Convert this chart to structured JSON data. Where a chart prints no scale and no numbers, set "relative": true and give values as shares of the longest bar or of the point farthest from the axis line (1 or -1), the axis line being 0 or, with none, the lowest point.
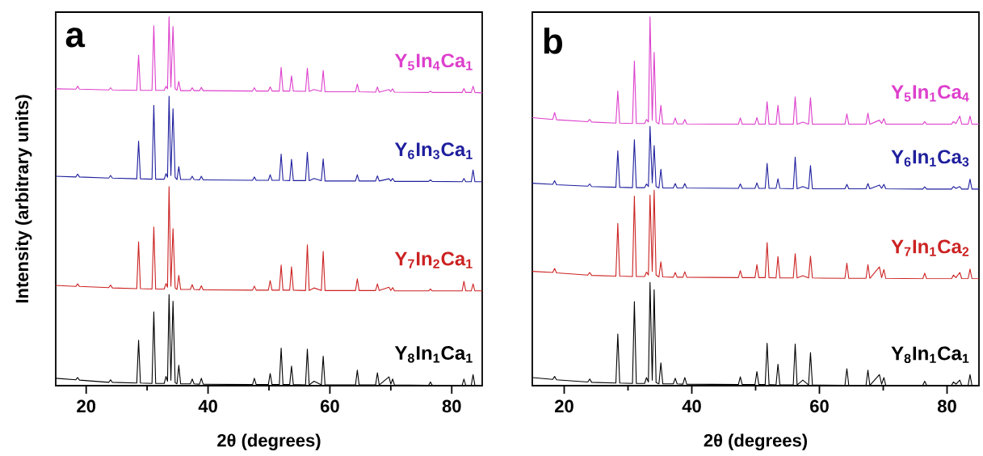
{
  "chart_data": [
    {
      "type": "line",
      "title": "a",
      "xlabel": "2θ (degrees)",
      "ylabel": "Intensity (arbitrary units)",
      "relative": true,
      "xlim": [
        15,
        85
      ],
      "xticks": [
        20,
        40,
        60,
        80
      ],
      "x": [
        15,
        18.3,
        18.6,
        18.9,
        23.7,
        24.0,
        24.3,
        28.3,
        28.6,
        28.9,
        30.8,
        31.1,
        31.4,
        32.8,
        33.1,
        33.35,
        33.6,
        33.9,
        34.25,
        34.6,
        34.9,
        35.2,
        35.5,
        37.1,
        37.4,
        37.7,
        38.6,
        38.9,
        39.2,
        47.3,
        47.6,
        47.9,
        49.9,
        50.2,
        50.5,
        51.7,
        52.0,
        52.3,
        53.4,
        53.7,
        54.0,
        56.0,
        56.3,
        56.6,
        57.4,
        58.6,
        58.9,
        59.2,
        64.2,
        64.5,
        64.8,
        67.5,
        67.8,
        68.1,
        69.7,
        70.0,
        70.3,
        70.6,
        76.2,
        76.5,
        76.8,
        81.7,
        82.0,
        82.3,
        83.2,
        83.5,
        83.8,
        85
      ],
      "series": [
        {
          "name": "Y$_{8}$In$_{1}$Ca$_{1}$",
          "color": "#000000",
          "values": [
            0.02,
            0.016,
            0.022,
            0.015,
            0.009,
            0.016,
            0.009,
            0.007,
            0.123,
            0.007,
            0.006,
            0.2,
            0.006,
            0.006,
            0.025,
            0.012,
            0.247,
            0.015,
            0.229,
            0.008,
            0.005,
            0.055,
            0.005,
            0.005,
            0.018,
            0.005,
            0.004,
            0.02,
            0.004,
            0.003,
            0.02,
            0.003,
            0.003,
            0.033,
            0.003,
            0.003,
            0.102,
            0.003,
            0.003,
            0.053,
            0.003,
            0.002,
            0.099,
            0.002,
            0.012,
            0.002,
            0.08,
            0.002,
            0.002,
            0.042,
            0.002,
            0.002,
            0.035,
            0.002,
            0.024,
            0.004,
            0.018,
            0.002,
            0.001,
            0.01,
            0.001,
            0.001,
            0.018,
            0.001,
            0.001,
            0.03,
            0.001,
            0.001
          ]
        },
        {
          "name": "Y$_{7}$In$_{2}$Ca$_{1}$",
          "color": "#cc2222",
          "values": [
            0.272,
            0.269,
            0.276,
            0.269,
            0.266,
            0.273,
            0.265,
            0.263,
            0.39,
            0.263,
            0.262,
            0.43,
            0.262,
            0.262,
            0.277,
            0.267,
            0.54,
            0.27,
            0.426,
            0.265,
            0.261,
            0.299,
            0.261,
            0.261,
            0.274,
            0.261,
            0.26,
            0.271,
            0.26,
            0.259,
            0.27,
            0.259,
            0.259,
            0.285,
            0.259,
            0.259,
            0.327,
            0.259,
            0.259,
            0.322,
            0.259,
            0.258,
            0.382,
            0.258,
            0.265,
            0.258,
            0.364,
            0.258,
            0.258,
            0.29,
            0.258,
            0.258,
            0.276,
            0.258,
            0.267,
            0.258,
            0.266,
            0.257,
            0.257,
            0.262,
            0.257,
            0.257,
            0.283,
            0.257,
            0.257,
            0.276,
            0.257,
            0.257
          ]
        },
        {
          "name": "Y$_{6}$In$_{3}$Ca$_{1}$",
          "color": "#1f1f9e",
          "values": [
            0.568,
            0.566,
            0.574,
            0.566,
            0.563,
            0.57,
            0.563,
            0.561,
            0.663,
            0.561,
            0.56,
            0.76,
            0.56,
            0.56,
            0.575,
            0.565,
            0.785,
            0.57,
            0.751,
            0.565,
            0.559,
            0.594,
            0.559,
            0.559,
            0.568,
            0.559,
            0.558,
            0.568,
            0.558,
            0.557,
            0.566,
            0.557,
            0.557,
            0.572,
            0.557,
            0.557,
            0.628,
            0.557,
            0.556,
            0.614,
            0.556,
            0.556,
            0.633,
            0.556,
            0.562,
            0.556,
            0.615,
            0.555,
            0.555,
            0.572,
            0.555,
            0.555,
            0.569,
            0.555,
            0.561,
            0.555,
            0.562,
            0.554,
            0.554,
            0.558,
            0.554,
            0.553,
            0.562,
            0.553,
            0.553,
            0.585,
            0.553,
            0.553
          ]
        },
        {
          "name": "Y$_{5}$In$_{4}$Ca$_{1}$",
          "color": "#dd3fcc",
          "values": [
            0.805,
            0.804,
            0.812,
            0.804,
            0.802,
            0.808,
            0.802,
            0.801,
            0.896,
            0.801,
            0.801,
            0.976,
            0.801,
            0.801,
            0.812,
            0.805,
            1.0,
            0.81,
            0.974,
            0.805,
            0.801,
            0.825,
            0.8,
            0.8,
            0.808,
            0.8,
            0.8,
            0.809,
            0.8,
            0.799,
            0.808,
            0.799,
            0.799,
            0.81,
            0.799,
            0.799,
            0.863,
            0.799,
            0.799,
            0.84,
            0.799,
            0.798,
            0.861,
            0.798,
            0.803,
            0.798,
            0.855,
            0.797,
            0.797,
            0.818,
            0.797,
            0.796,
            0.81,
            0.796,
            0.803,
            0.798,
            0.805,
            0.796,
            0.795,
            0.799,
            0.795,
            0.795,
            0.806,
            0.795,
            0.795,
            0.812,
            0.795,
            0.794
          ]
        }
      ]
    },
    {
      "type": "line",
      "title": "b",
      "xlabel": "2θ (degrees)",
      "relative": true,
      "xlim": [
        15,
        85
      ],
      "xticks": [
        20,
        40,
        60,
        80
      ],
      "x": [
        15,
        18.2,
        18.5,
        18.8,
        23.7,
        24.0,
        24.3,
        28.1,
        28.4,
        28.7,
        30.7,
        31.0,
        31.3,
        32.6,
        32.9,
        33.2,
        33.45,
        33.8,
        34.1,
        34.4,
        34.85,
        35.15,
        35.45,
        37.1,
        37.4,
        37.7,
        38.6,
        38.9,
        39.2,
        47.3,
        47.6,
        47.9,
        49.9,
        50.2,
        50.5,
        51.5,
        51.8,
        52.1,
        53.2,
        53.5,
        53.8,
        55.9,
        56.2,
        56.5,
        57.4,
        58.3,
        58.6,
        58.9,
        64.0,
        64.3,
        64.6,
        67.3,
        67.6,
        67.9,
        69.4,
        69.75,
        70.1,
        70.4,
        76.2,
        76.5,
        76.8,
        80.7,
        81.0,
        81.4,
        82.0,
        82.3,
        83.3,
        83.6,
        83.9,
        85
      ],
      "series": [
        {
          "name": "Y$_{8}$In$_{1}$Ca$_{1}$",
          "color": "#000000",
          "values": [
            0.022,
            0.017,
            0.025,
            0.016,
            0.01,
            0.018,
            0.009,
            0.007,
            0.14,
            0.007,
            0.006,
            0.228,
            0.006,
            0.006,
            0.022,
            0.01,
            0.28,
            0.015,
            0.26,
            0.008,
            0.005,
            0.062,
            0.005,
            0.005,
            0.02,
            0.005,
            0.004,
            0.022,
            0.004,
            0.003,
            0.024,
            0.003,
            0.003,
            0.038,
            0.003,
            0.003,
            0.115,
            0.003,
            0.002,
            0.058,
            0.002,
            0.002,
            0.113,
            0.002,
            0.015,
            0.002,
            0.09,
            0.002,
            0.001,
            0.046,
            0.001,
            0.001,
            0.042,
            0.001,
            0.03,
            0.004,
            0.022,
            0.001,
            0.001,
            0.012,
            0.001,
            0.001,
            0.01,
            0.004,
            0.015,
            0.001,
            0.001,
            0.03,
            0.001,
            0
          ]
        },
        {
          "name": "Y$_{7}$In$_{1}$Ca$_{2}$",
          "color": "#cc2222",
          "values": [
            0.31,
            0.307,
            0.318,
            0.306,
            0.3,
            0.307,
            0.299,
            0.297,
            0.44,
            0.297,
            0.296,
            0.514,
            0.296,
            0.296,
            0.308,
            0.3,
            0.517,
            0.31,
            0.53,
            0.3,
            0.295,
            0.336,
            0.295,
            0.294,
            0.307,
            0.294,
            0.294,
            0.309,
            0.294,
            0.293,
            0.312,
            0.293,
            0.293,
            0.328,
            0.293,
            0.293,
            0.388,
            0.293,
            0.292,
            0.35,
            0.292,
            0.292,
            0.358,
            0.292,
            0.298,
            0.292,
            0.351,
            0.292,
            0.291,
            0.332,
            0.291,
            0.291,
            0.328,
            0.291,
            0.322,
            0.293,
            0.315,
            0.291,
            0.29,
            0.305,
            0.29,
            0.29,
            0.3,
            0.293,
            0.307,
            0.29,
            0.29,
            0.316,
            0.29,
            0.29
          ]
        },
        {
          "name": "Y$_{6}$In$_{1}$Ca$_{3}$",
          "color": "#1f1f9e",
          "values": [
            0.549,
            0.546,
            0.556,
            0.545,
            0.541,
            0.547,
            0.54,
            0.538,
            0.637,
            0.538,
            0.537,
            0.667,
            0.537,
            0.537,
            0.547,
            0.54,
            0.703,
            0.55,
            0.651,
            0.54,
            0.536,
            0.587,
            0.536,
            0.536,
            0.548,
            0.536,
            0.536,
            0.548,
            0.536,
            0.535,
            0.547,
            0.535,
            0.535,
            0.55,
            0.535,
            0.535,
            0.603,
            0.535,
            0.535,
            0.561,
            0.535,
            0.534,
            0.62,
            0.534,
            0.54,
            0.534,
            0.597,
            0.534,
            0.534,
            0.546,
            0.534,
            0.534,
            0.548,
            0.534,
            0.544,
            0.535,
            0.546,
            0.534,
            0.533,
            0.539,
            0.533,
            0.533,
            0.54,
            0.535,
            0.54,
            0.533,
            0.533,
            0.56,
            0.533,
            0.533
          ]
        },
        {
          "name": "Y$_{5}$In$_{1}$Ca$_{4}$",
          "color": "#dd3fcc",
          "values": [
            0.727,
            0.722,
            0.741,
            0.721,
            0.716,
            0.722,
            0.715,
            0.712,
            0.799,
            0.712,
            0.711,
            0.88,
            0.711,
            0.711,
            0.722,
            0.715,
            1.0,
            0.72,
            0.904,
            0.715,
            0.71,
            0.76,
            0.71,
            0.71,
            0.726,
            0.71,
            0.71,
            0.722,
            0.71,
            0.709,
            0.726,
            0.709,
            0.709,
            0.727,
            0.709,
            0.709,
            0.77,
            0.709,
            0.709,
            0.76,
            0.709,
            0.709,
            0.783,
            0.709,
            0.715,
            0.709,
            0.781,
            0.709,
            0.709,
            0.737,
            0.709,
            0.709,
            0.739,
            0.709,
            0.72,
            0.711,
            0.724,
            0.709,
            0.709,
            0.716,
            0.709,
            0.709,
            0.716,
            0.711,
            0.731,
            0.709,
            0.709,
            0.731,
            0.709,
            0.709
          ]
        }
      ]
    }
  ]
}
